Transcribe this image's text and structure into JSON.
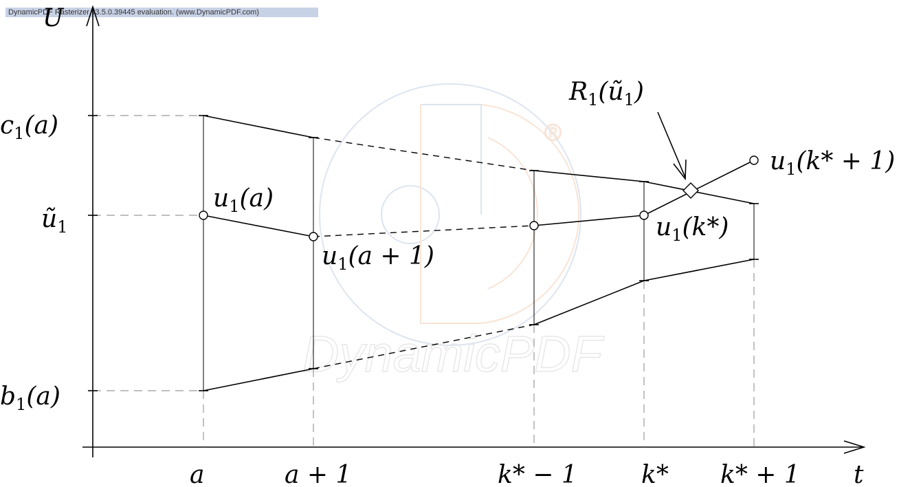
{
  "watermark": {
    "banner_text": "DynamicPDF Rasterizer v3.5.0.39445 evaluation. (www.DynamicPDF.com)",
    "logo_text": "DynamicPDF",
    "registered_mark": "®"
  },
  "axes": {
    "y_label": "U",
    "x_label": "t"
  },
  "y_ticks": [
    {
      "base": "c",
      "sub": "1",
      "rest": "(a)"
    },
    {
      "base": "ũ",
      "sub": "1",
      "rest": ""
    },
    {
      "base": "b",
      "sub": "1",
      "rest": "(a)"
    }
  ],
  "x_ticks": [
    "a",
    "a + 1",
    "k* − 1",
    "k*",
    "k* + 1"
  ],
  "point_labels": [
    {
      "base": "u",
      "sub": "1",
      "rest": "(a)"
    },
    {
      "base": "u",
      "sub": "1",
      "rest": "(a + 1)"
    },
    {
      "base": "u",
      "sub": "1",
      "rest": "(k*)"
    },
    {
      "base": "u",
      "sub": "1",
      "rest": "(k* + 1)"
    }
  ],
  "annotation": {
    "base": "R",
    "sub": "1",
    "rest": "(ũ",
    "sub2": "1",
    "close": ")"
  }
}
